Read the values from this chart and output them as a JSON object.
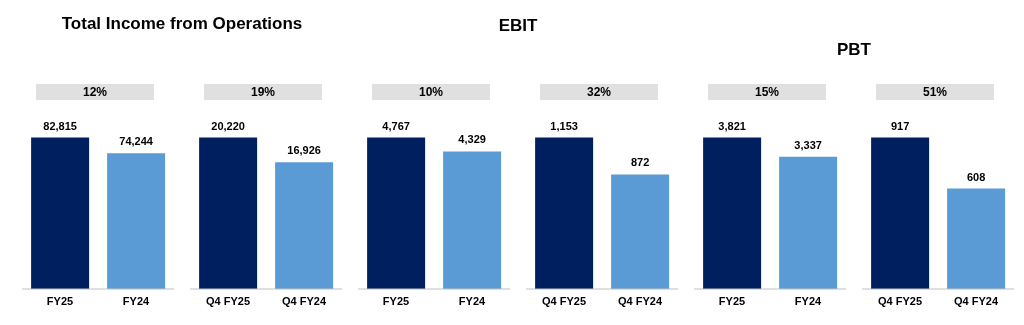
{
  "chart_data": [
    {
      "type": "bar",
      "title": "Total Income from Operations",
      "categories": [
        "FY25",
        "FY24"
      ],
      "values": [
        82815,
        74244
      ],
      "colors": [
        "#001f5f",
        "#5b9bd5"
      ],
      "value_labels": [
        "82,815",
        "74,244"
      ],
      "annotations": [
        "12%"
      ]
    },
    {
      "type": "bar",
      "categories": [
        "Q4 FY25",
        "Q4 FY24"
      ],
      "values": [
        20220,
        16926
      ],
      "colors": [
        "#001f5f",
        "#5b9bd5"
      ],
      "value_labels": [
        "20,220",
        "16,926"
      ],
      "annotations": [
        "19%"
      ]
    },
    {
      "type": "bar",
      "title": "EBIT",
      "categories": [
        "FY25",
        "FY24"
      ],
      "values": [
        4767,
        4329
      ],
      "colors": [
        "#001f5f",
        "#5b9bd5"
      ],
      "value_labels": [
        "4,767",
        "4,329"
      ],
      "annotations": [
        "10%"
      ]
    },
    {
      "type": "bar",
      "categories": [
        "Q4 FY25",
        "Q4 FY24"
      ],
      "values": [
        1153,
        872
      ],
      "colors": [
        "#001f5f",
        "#5b9bd5"
      ],
      "value_labels": [
        "1,153",
        "872"
      ],
      "annotations": [
        "32%"
      ]
    },
    {
      "type": "bar",
      "title": "PBT",
      "categories": [
        "FY25",
        "FY24"
      ],
      "values": [
        3821,
        3337
      ],
      "colors": [
        "#001f5f",
        "#5b9bd5"
      ],
      "value_labels": [
        "3,821",
        "3,337"
      ],
      "annotations": [
        "15%"
      ]
    },
    {
      "type": "bar",
      "categories": [
        "Q4 FY25",
        "Q4 FY24"
      ],
      "values": [
        917,
        608
      ],
      "colors": [
        "#001f5f",
        "#5b9bd5"
      ],
      "value_labels": [
        "917",
        "608"
      ],
      "annotations": [
        "51%"
      ]
    }
  ]
}
